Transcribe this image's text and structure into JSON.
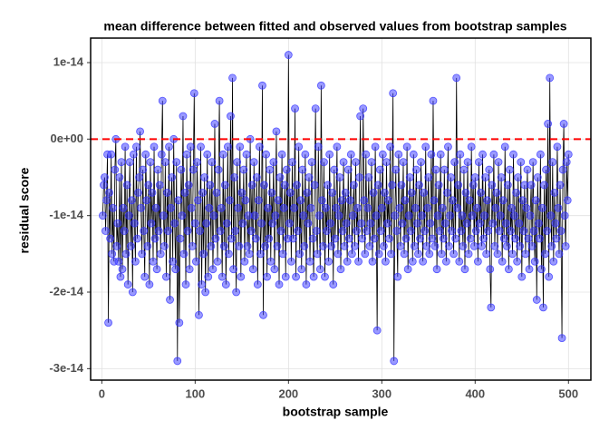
{
  "chart_data": {
    "type": "line-points",
    "title": "mean difference between fitted and observed values from bootstrap samples",
    "xlabel": "bootstrap sample",
    "ylabel": "residual score",
    "color": "#3333ff",
    "line_color": "#000000",
    "hline": 0,
    "hline_color": "#ff0000",
    "xlim": [
      -12,
      524
    ],
    "ylim": [
      -3.15e-14,
      1.32e-14
    ],
    "xticks": [
      0,
      100,
      200,
      300,
      400,
      500
    ],
    "yticks": [
      {
        "value": 1e-14,
        "label": "1e-14"
      },
      {
        "value": 0,
        "label": "0e+00"
      },
      {
        "value": -1e-14,
        "label": "-1e-14"
      },
      {
        "value": -2e-14,
        "label": "-2e-14"
      },
      {
        "value": -3e-14,
        "label": "-3e-14"
      }
    ],
    "grid": true,
    "x": [
      1,
      2,
      3,
      4,
      5,
      6,
      7,
      8,
      9,
      10,
      11,
      12,
      13,
      14,
      15,
      16,
      17,
      18,
      19,
      20,
      21,
      22,
      23,
      24,
      25,
      26,
      27,
      28,
      29,
      30,
      31,
      32,
      33,
      34,
      35,
      36,
      37,
      38,
      39,
      40,
      41,
      42,
      43,
      44,
      45,
      46,
      47,
      48,
      49,
      50,
      51,
      52,
      53,
      54,
      55,
      56,
      57,
      58,
      59,
      60,
      61,
      62,
      63,
      64,
      65,
      66,
      67,
      68,
      69,
      70,
      71,
      72,
      73,
      74,
      75,
      76,
      77,
      78,
      79,
      80,
      81,
      82,
      83,
      84,
      85,
      86,
      87,
      88,
      89,
      90,
      91,
      92,
      93,
      94,
      95,
      96,
      97,
      98,
      99,
      100,
      101,
      102,
      103,
      104,
      105,
      106,
      107,
      108,
      109,
      110,
      111,
      112,
      113,
      114,
      115,
      116,
      117,
      118,
      119,
      120,
      121,
      122,
      123,
      124,
      125,
      126,
      127,
      128,
      129,
      130,
      131,
      132,
      133,
      134,
      135,
      136,
      137,
      138,
      139,
      140,
      141,
      142,
      143,
      144,
      145,
      146,
      147,
      148,
      149,
      150,
      151,
      152,
      153,
      154,
      155,
      156,
      157,
      158,
      159,
      160,
      161,
      162,
      163,
      164,
      165,
      166,
      167,
      168,
      169,
      170,
      171,
      172,
      173,
      174,
      175,
      176,
      177,
      178,
      179,
      180,
      181,
      182,
      183,
      184,
      185,
      186,
      187,
      188,
      189,
      190,
      191,
      192,
      193,
      194,
      195,
      196,
      197,
      198,
      199,
      200,
      201,
      202,
      203,
      204,
      205,
      206,
      207,
      208,
      209,
      210,
      211,
      212,
      213,
      214,
      215,
      216,
      217,
      218,
      219,
      220,
      221,
      222,
      223,
      224,
      225,
      226,
      227,
      228,
      229,
      230,
      231,
      232,
      233,
      234,
      235,
      236,
      237,
      238,
      239,
      240,
      241,
      242,
      243,
      244,
      245,
      246,
      247,
      248,
      249,
      250,
      251,
      252,
      253,
      254,
      255,
      256,
      257,
      258,
      259,
      260,
      261,
      262,
      263,
      264,
      265,
      266,
      267,
      268,
      269,
      270,
      271,
      272,
      273,
      274,
      275,
      276,
      277,
      278,
      279,
      280,
      281,
      282,
      283,
      284,
      285,
      286,
      287,
      288,
      289,
      290,
      291,
      292,
      293,
      294,
      295,
      296,
      297,
      298,
      299,
      300,
      301,
      302,
      303,
      304,
      305,
      306,
      307,
      308,
      309,
      310,
      311,
      312,
      313,
      314,
      315,
      316,
      317,
      318,
      319,
      320,
      321,
      322,
      323,
      324,
      325,
      326,
      327,
      328,
      329,
      330,
      331,
      332,
      333,
      334,
      335,
      336,
      337,
      338,
      339,
      340,
      341,
      342,
      343,
      344,
      345,
      346,
      347,
      348,
      349,
      350,
      351,
      352,
      353,
      354,
      355,
      356,
      357,
      358,
      359,
      360,
      361,
      362,
      363,
      364,
      365,
      366,
      367,
      368,
      369,
      370,
      371,
      372,
      373,
      374,
      375,
      376,
      377,
      378,
      379,
      380,
      381,
      382,
      383,
      384,
      385,
      386,
      387,
      388,
      389,
      390,
      391,
      392,
      393,
      394,
      395,
      396,
      397,
      398,
      399,
      400,
      401,
      402,
      403,
      404,
      405,
      406,
      407,
      408,
      409,
      410,
      411,
      412,
      413,
      414,
      415,
      416,
      417,
      418,
      419,
      420,
      421,
      422,
      423,
      424,
      425,
      426,
      427,
      428,
      429,
      430,
      431,
      432,
      433,
      434,
      435,
      436,
      437,
      438,
      439,
      440,
      441,
      442,
      443,
      444,
      445,
      446,
      447,
      448,
      449,
      450,
      451,
      452,
      453,
      454,
      455,
      456,
      457,
      458,
      459,
      460,
      461,
      462,
      463,
      464,
      465,
      466,
      467,
      468,
      469,
      470,
      471,
      472,
      473,
      474,
      475,
      476,
      477,
      478,
      479,
      480,
      481,
      482,
      483,
      484,
      485,
      486,
      487,
      488,
      489,
      490,
      491,
      492,
      493,
      494,
      495,
      496,
      497,
      498,
      499,
      500
    ],
    "values": [
      -1e-14,
      -6e-15,
      -5e-15,
      -1.2e-14,
      -8e-15,
      -2e-15,
      -2.4e-14,
      -7e-15,
      -1.3e-14,
      -2e-15,
      -1.5e-14,
      -9e-15,
      -1.6e-14,
      -4e-15,
      0,
      -1.4e-14,
      -1.1e-14,
      -1.6e-14,
      -5e-15,
      -1.8e-14,
      -3e-15,
      -1.7e-14,
      -9e-15,
      -1.2e-14,
      -1e-15,
      -1.5e-14,
      -6e-15,
      -1.9e-14,
      -1e-14,
      -3e-15,
      -1.4e-14,
      -8e-15,
      -2e-14,
      -2e-15,
      -1.1e-14,
      -1.6e-14,
      -1e-15,
      -1.3e-14,
      -7e-15,
      -5e-15,
      1e-15,
      -9e-15,
      -1.5e-14,
      -4e-15,
      -1.2e-14,
      -1.8e-14,
      -2e-15,
      -8e-15,
      -1.4e-14,
      -6e-15,
      -1.9e-14,
      -3e-15,
      -1.1e-14,
      -7e-15,
      -1.6e-14,
      -1e-15,
      -1.3e-14,
      -9e-15,
      -1.7e-14,
      -4e-15,
      -1.2e-14,
      -6e-15,
      -1.5e-14,
      -2e-15,
      5e-15,
      -1e-14,
      -1.4e-14,
      -3e-15,
      -1.8e-14,
      -7e-15,
      -1.2e-14,
      -1e-15,
      -2.1e-14,
      -9e-15,
      -5e-15,
      -1.6e-14,
      0,
      -1.1e-14,
      -1.7e-14,
      -3e-15,
      -2.9e-14,
      -8e-15,
      -2.4e-14,
      -1.3e-14,
      -4e-15,
      -1e-14,
      3e-15,
      -1.5e-14,
      -7e-15,
      -1.9e-14,
      -2e-15,
      -1.2e-14,
      -6e-15,
      -1.7e-14,
      -1e-15,
      -9e-15,
      -1.4e-14,
      -4e-15,
      6e-15,
      -1.1e-14,
      -1.6e-14,
      -3e-15,
      -8e-15,
      -2.3e-14,
      -1.2e-14,
      -1e-15,
      -1.9e-14,
      -7e-15,
      -1.5e-14,
      -5e-15,
      -2e-14,
      -1.1e-14,
      -2e-15,
      -1.8e-14,
      -9e-15,
      -6e-15,
      -1.4e-14,
      -3e-15,
      -1.7e-14,
      -1e-14,
      2e-15,
      -1.3e-14,
      -7e-15,
      -1.6e-14,
      -4e-15,
      5e-15,
      -1.2e-14,
      -9e-15,
      -1.8e-14,
      -2e-15,
      -1.4e-14,
      -6e-15,
      -1.9e-14,
      -1.1e-14,
      -1e-15,
      -1.5e-14,
      -8e-15,
      3e-15,
      -1.3e-14,
      8e-15,
      -1.7e-14,
      -5e-15,
      -1.2e-14,
      -2e-14,
      -3e-15,
      -9e-15,
      -1.4e-14,
      -1e-15,
      -1.8e-14,
      -7e-15,
      -1.1e-14,
      -4e-15,
      -1.6e-14,
      -8e-15,
      -2e-15,
      -1.4e-14,
      -1e-14,
      -1.5e-14,
      0,
      -1.2e-14,
      -6e-15,
      -1.7e-14,
      -3e-15,
      -1e-14,
      -1.3e-14,
      -5e-15,
      -1.9e-14,
      -8e-15,
      -1e-15,
      -1.5e-14,
      -1.1e-14,
      7e-15,
      -2.3e-14,
      -6e-15,
      -1.4e-14,
      -2e-15,
      -1.8e-14,
      -9e-15,
      -1.3e-14,
      -4e-15,
      -1.6e-14,
      -7e-15,
      -1.1e-14,
      -3e-15,
      -1.7e-14,
      -1e-14,
      1e-15,
      -1.4e-14,
      -8e-15,
      -1.9e-14,
      -5e-15,
      -1.2e-14,
      -2e-15,
      -1.5e-14,
      -9e-15,
      -6e-15,
      -1.8e-14,
      -4e-15,
      -1.3e-14,
      1.1e-14,
      -1.1e-14,
      -7e-15,
      -1.6e-14,
      -3e-15,
      -1.3e-14,
      -9e-15,
      4e-15,
      -1.8e-14,
      -6e-15,
      -1.2e-14,
      -1e-15,
      -1.5e-14,
      -8e-15,
      -1.7e-14,
      -4e-15,
      -1e-14,
      -1.4e-14,
      -2e-15,
      -1.9e-14,
      -7e-15,
      -1.1e-14,
      -5e-15,
      -1.6e-14,
      -9e-15,
      -3e-15,
      -1.3e-14,
      -1.8e-14,
      -6e-15,
      4e-15,
      -1.2e-14,
      -1.5e-14,
      -1e-15,
      -1e-14,
      -1.7e-14,
      7e-15,
      -8e-15,
      -1.4e-14,
      -3e-15,
      -1.8e-14,
      -9e-15,
      -1.2e-14,
      -6e-15,
      -1.6e-14,
      -2e-15,
      -1.1e-14,
      -1.4e-14,
      -7e-15,
      -1.9e-14,
      -4e-15,
      -1.3e-14,
      -9e-15,
      -1e-15,
      -1.5e-14,
      -1e-14,
      -5e-15,
      -1.7e-14,
      -8e-15,
      -1.2e-14,
      -3e-15,
      -1.4e-14,
      -7e-15,
      -1.1e-14,
      -1.6e-14,
      -4e-15,
      -1.3e-14,
      -8e-15,
      -2e-15,
      -1.5e-14,
      -1e-14,
      -6e-15,
      -1.4e-14,
      -3e-15,
      -1.2e-14,
      -9e-15,
      -1.6e-14,
      -5e-15,
      3e-15,
      -1.1e-14,
      -1.3e-14,
      4e-15,
      -8e-15,
      -1.5e-14,
      -2e-15,
      -1.2e-14,
      -9e-15,
      -5e-15,
      -1.4e-14,
      -1.1e-14,
      -3e-15,
      -1.6e-14,
      -7e-15,
      -1.3e-14,
      -1e-15,
      -1e-14,
      -2.5e-14,
      -6e-15,
      -1.5e-14,
      -4e-15,
      -1.2e-14,
      -9e-15,
      -2e-15,
      -1.4e-14,
      -7e-15,
      -1.6e-14,
      -3e-15,
      -1.1e-14,
      -8e-15,
      -1.3e-14,
      -1e-15,
      -1.5e-14,
      -6e-15,
      6e-15,
      -2.9e-14,
      -1e-14,
      -4e-15,
      -1.2e-14,
      -1.8e-14,
      -2e-15,
      -9e-15,
      -1.4e-14,
      -6e-15,
      -1.1e-14,
      -3e-15,
      -1.5e-14,
      -8e-15,
      -1.3e-14,
      -1e-15,
      -1.7e-14,
      -1e-14,
      -5e-15,
      -1.2e-14,
      -7e-15,
      -1.6e-14,
      -2e-15,
      -1.4e-14,
      -9e-15,
      -4e-15,
      -1.1e-14,
      -1.5e-14,
      -6e-15,
      -1.3e-14,
      -3e-15,
      -1e-14,
      -1.6e-14,
      -7e-15,
      -1.2e-14,
      -1e-15,
      -1.4e-14,
      -9e-15,
      -5e-15,
      -1.5e-14,
      -1.1e-14,
      -2e-15,
      -1.3e-14,
      5e-15,
      -8e-15,
      -1.4e-14,
      -4e-15,
      -1.7e-14,
      -1e-14,
      -6e-15,
      -1.2e-14,
      -2e-15,
      -1.5e-14,
      -9e-15,
      -1.3e-14,
      -4e-15,
      -1.1e-14,
      -1.6e-14,
      -7e-15,
      -1e-15,
      -1.4e-14,
      -1e-14,
      -5e-15,
      -1.2e-14,
      -8e-15,
      -1.5e-14,
      -3e-15,
      -1.3e-14,
      8e-15,
      -9e-15,
      -6e-15,
      -1.6e-14,
      -2e-15,
      -1.2e-14,
      -1e-14,
      -1.4e-14,
      -4e-15,
      -1.7e-14,
      -7e-15,
      -1.1e-14,
      -3e-15,
      -1.5e-14,
      -8e-15,
      -1.3e-14,
      -1e-15,
      -1e-14,
      -6e-15,
      -1.4e-14,
      -5e-15,
      -1.2e-14,
      -9e-15,
      -1.6e-14,
      -3e-15,
      -1.1e-14,
      -7e-15,
      -1.4e-14,
      -2e-15,
      -1.3e-14,
      -1e-14,
      -5e-15,
      -1.5e-14,
      -8e-15,
      -1.2e-14,
      -4e-15,
      -1.7e-14,
      -2.2e-14,
      -6e-15,
      -1.1e-14,
      -2e-15,
      -1.4e-14,
      -9e-15,
      -7e-15,
      -1.5e-14,
      -3e-15,
      -1.2e-14,
      -1e-14,
      -5e-15,
      -1.6e-14,
      -8e-15,
      -1.3e-14,
      -1e-15,
      -1.1e-14,
      -1.4e-14,
      -6e-15,
      -1.7e-14,
      -4e-15,
      -1.2e-14,
      -9e-15,
      -1.5e-14,
      -2e-15,
      -1e-14,
      -1.3e-14,
      -7e-15,
      -1.6e-14,
      -5e-15,
      -1.1e-14,
      -1.4e-14,
      -3e-15,
      -1.8e-14,
      -8e-15,
      -1.2e-14,
      -6e-15,
      -1.5e-14,
      -9e-15,
      -4e-15,
      -1.3e-14,
      -1.7e-14,
      -1e-14,
      -6e-15,
      -1.4e-14,
      -3e-15,
      -1.2e-14,
      -1.6e-14,
      -8e-15,
      -2.1e-14,
      -5e-15,
      -1.1e-14,
      -1.3e-14,
      -2e-15,
      -1.7e-14,
      -9e-15,
      -2.2e-14,
      -6e-15,
      -1.5e-14,
      -4e-15,
      -1.2e-14,
      2e-15,
      -1.8e-14,
      8e-15,
      -1e-14,
      -1.4e-14,
      -3e-15,
      -1.6e-14,
      -7e-15,
      -1.1e-14,
      -1.3e-14,
      -1e-15,
      -9e-15,
      -1.5e-14,
      -6e-15,
      -1.2e-14,
      -2.6e-14,
      -4e-15,
      2e-15,
      -1e-14,
      -1.4e-14,
      -3e-15,
      -8e-15,
      -2e-15
    ]
  }
}
